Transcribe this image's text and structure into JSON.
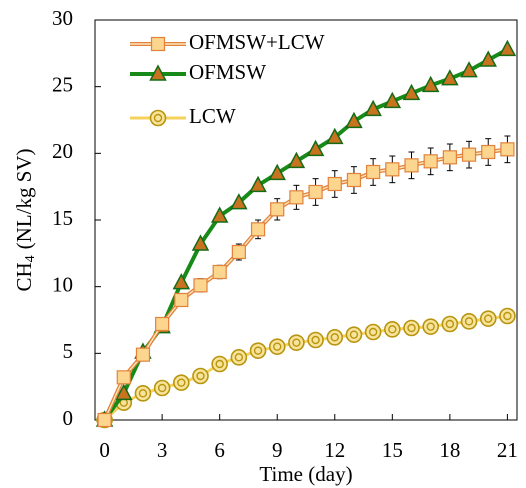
{
  "chart_data": {
    "type": "line",
    "x_label": "Time (day)",
    "y_label": {
      "text": "CH",
      "subscript": "4",
      "unit": "(NL/kg SV)"
    },
    "x": [
      0,
      1,
      2,
      3,
      4,
      5,
      6,
      7,
      8,
      9,
      10,
      11,
      12,
      13,
      14,
      15,
      16,
      17,
      18,
      19,
      20,
      21
    ],
    "xlim": [
      -0.5,
      21.5
    ],
    "xticks": [
      0,
      3,
      6,
      9,
      12,
      15,
      18,
      21
    ],
    "ylim": [
      0,
      30
    ],
    "yticks": [
      0,
      5,
      10,
      15,
      20,
      25,
      30
    ],
    "legend": "top-left",
    "series": [
      {
        "name": "OFMSW+LCW",
        "color": "#e2823b",
        "marker": "square",
        "marker_fill": "#fcd58e",
        "values": [
          0,
          3.2,
          4.9,
          7.2,
          9.0,
          10.1,
          11.1,
          12.6,
          14.3,
          15.8,
          16.7,
          17.1,
          17.7,
          18.0,
          18.6,
          18.8,
          19.1,
          19.4,
          19.7,
          19.9,
          20.1,
          20.3
        ],
        "errors": [
          0,
          0.3,
          0.3,
          0.3,
          0.4,
          0.5,
          0.5,
          0.6,
          0.7,
          0.8,
          0.9,
          1,
          1,
          1,
          1,
          1,
          1,
          1,
          1,
          1,
          1,
          1
        ]
      },
      {
        "name": "OFMSW",
        "color": "#178a17",
        "marker": "triangle",
        "marker_fill": "#c8731f",
        "values": [
          0,
          2.0,
          5.1,
          7.0,
          10.3,
          13.2,
          15.3,
          16.3,
          17.6,
          18.5,
          19.4,
          20.3,
          21.2,
          22.4,
          23.3,
          23.9,
          24.5,
          25.1,
          25.6,
          26.2,
          27.0,
          27.8
        ]
      },
      {
        "name": "LCW",
        "color": "#f4d25c",
        "marker": "double-circle",
        "marker_fill": "#f8e39a",
        "values": [
          0,
          1.3,
          2.0,
          2.4,
          2.8,
          3.3,
          4.2,
          4.7,
          5.2,
          5.5,
          5.8,
          6.0,
          6.2,
          6.4,
          6.6,
          6.8,
          6.9,
          7.0,
          7.2,
          7.4,
          7.6,
          7.8
        ]
      }
    ]
  }
}
